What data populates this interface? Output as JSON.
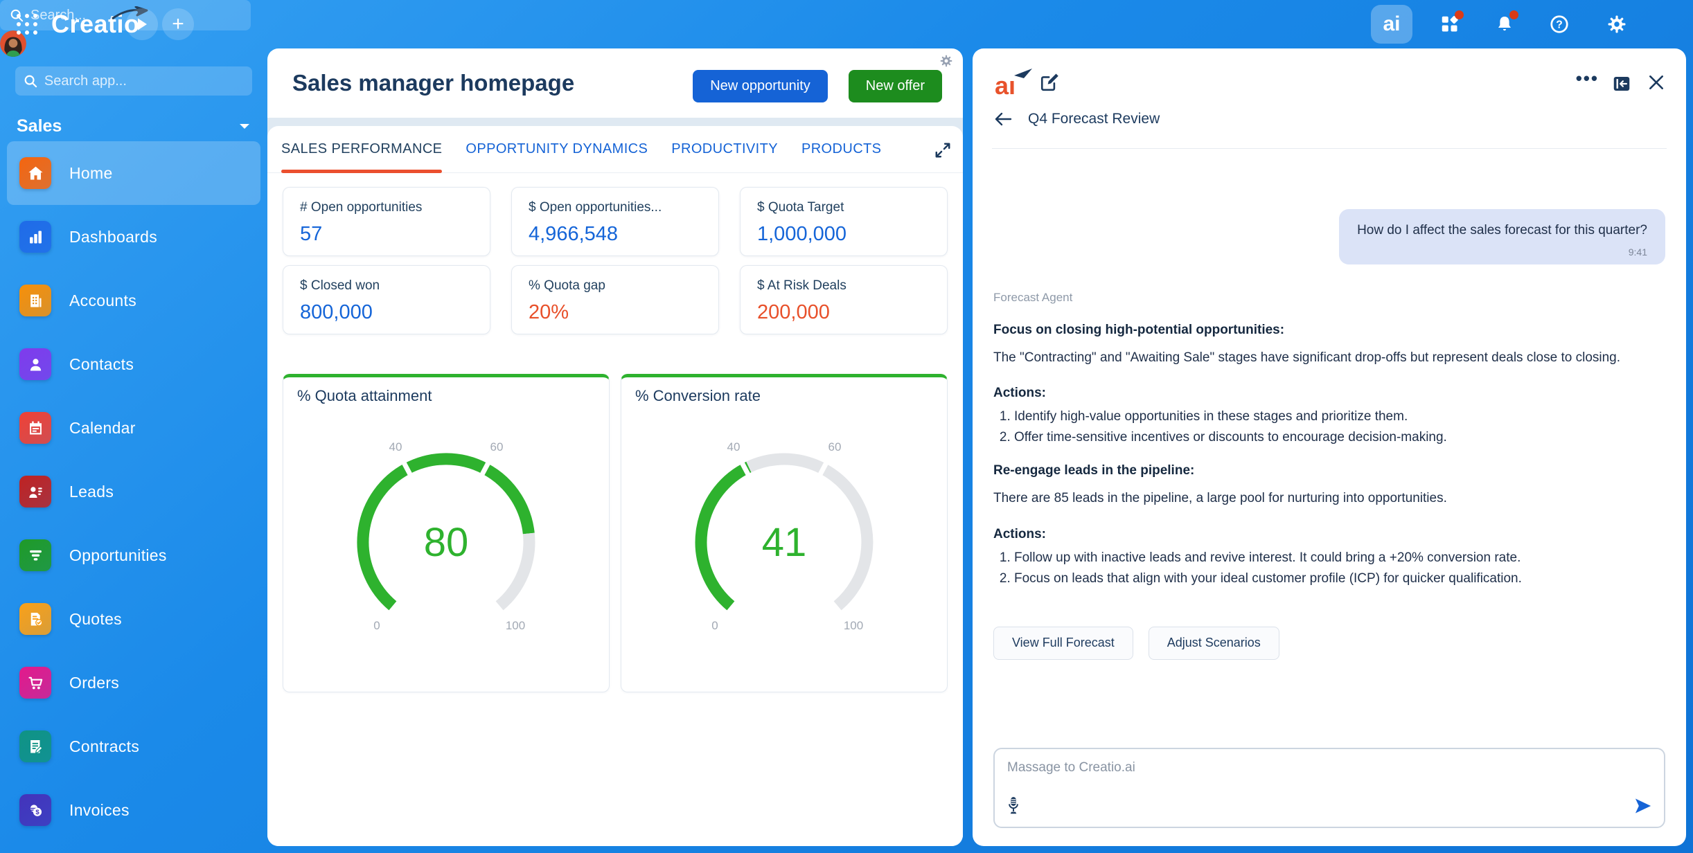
{
  "topbar": {
    "search_placeholder": "Search...",
    "ai_button_label": "ai"
  },
  "sidebar": {
    "search_placeholder": "Search app...",
    "workspace": "Sales",
    "items": [
      {
        "label": "Home",
        "icon": "home-icon",
        "color": "#f4650f",
        "active": true
      },
      {
        "label": "Dashboards",
        "icon": "bar-chart-icon",
        "color": "#1f6be8",
        "active": false
      },
      {
        "label": "Accounts",
        "icon": "building-icon",
        "color": "#f79009",
        "active": false
      },
      {
        "label": "Contacts",
        "icon": "person-icon",
        "color": "#7f3bec",
        "active": false
      },
      {
        "label": "Calendar",
        "icon": "calendar-icon",
        "color": "#ef4136",
        "active": false
      },
      {
        "label": "Leads",
        "icon": "leads-icon",
        "color": "#bf2222",
        "active": false
      },
      {
        "label": "Opportunities",
        "icon": "funnel-icon",
        "color": "#1f9a28",
        "active": false
      },
      {
        "label": "Quotes",
        "icon": "quote-doc-icon",
        "color": "#f9a019",
        "active": false
      },
      {
        "label": "Orders",
        "icon": "cart-icon",
        "color": "#e3198b",
        "active": false
      },
      {
        "label": "Contracts",
        "icon": "contract-icon",
        "color": "#0f9384",
        "active": false
      },
      {
        "label": "Invoices",
        "icon": "invoice-icon",
        "color": "#4333bb",
        "active": false
      }
    ]
  },
  "main": {
    "title": "Sales manager homepage",
    "new_opportunity_label": "New opportunity",
    "new_offer_label": "New offer",
    "tabs": [
      {
        "label": "SALES PERFORMANCE",
        "active": true,
        "truncated": false
      },
      {
        "label": "OPPORTUNITY DYNAMICS",
        "active": false,
        "truncated": false
      },
      {
        "label": "PRODUCTIVITY",
        "active": false,
        "truncated": false
      },
      {
        "label": "PRODUCTS",
        "active": false,
        "truncated": true
      }
    ],
    "metrics": [
      {
        "label": "# Open opportunities",
        "value": "57",
        "color": "#1565d8"
      },
      {
        "label": "$ Open opportunities...",
        "value": "4,966,548",
        "color": "#1565d8"
      },
      {
        "label": "$ Quota Target",
        "value": "1,000,000",
        "color": "#1565d8"
      },
      {
        "label": "$ Closed won",
        "value": "800,000",
        "color": "#1565d8"
      },
      {
        "label": "% Quota gap",
        "value": "20%",
        "color": "#e8502a"
      },
      {
        "label": "$ At Risk Deals",
        "value": "200,000",
        "color": "#e8502a"
      }
    ]
  },
  "chart_data": [
    {
      "type": "gauge",
      "title": "% Quota attainment",
      "value": 80,
      "min": 0,
      "max": 100,
      "tick_labels": [
        0,
        40,
        60,
        100
      ],
      "value_color": "#2eb22e",
      "track_color": "#e3e5e8"
    },
    {
      "type": "gauge",
      "title": "% Conversion rate",
      "value": 41,
      "min": 0,
      "max": 100,
      "tick_labels": [
        0,
        40,
        60,
        100
      ],
      "value_color": "#2eb22e",
      "track_color": "#e3e5e8"
    }
  ],
  "ai_panel": {
    "logo_label": "ai",
    "conversation_title": "Q4 Forecast Review",
    "user_message": {
      "text": "How do I affect the sales forecast for this quarter?",
      "time": "9:41"
    },
    "agent_name": "Forecast Agent",
    "sections": [
      {
        "heading": "Focus on closing high-potential opportunities:",
        "paragraph": "The \"Contracting\" and \"Awaiting Sale\" stages have significant drop-offs but represent deals close to closing.",
        "actions_label": "Actions:",
        "actions": [
          "Identify high-value opportunities in these stages and prioritize them.",
          "Offer time-sensitive incentives or discounts to encourage decision-making."
        ]
      },
      {
        "heading": "Re-engage leads in the pipeline:",
        "paragraph": "There are 85 leads in the pipeline, a large pool for nurturing into opportunities.",
        "actions_label": "Actions:",
        "actions": [
          "Follow up with inactive leads and revive interest. It could bring a +20% conversion rate.",
          "Focus on leads that align with your ideal customer profile (ICP) for quicker qualification."
        ]
      }
    ],
    "action_buttons": [
      "View Full Forecast",
      "Adjust Scenarios"
    ],
    "input_placeholder": "Massage to Creatio.ai"
  }
}
